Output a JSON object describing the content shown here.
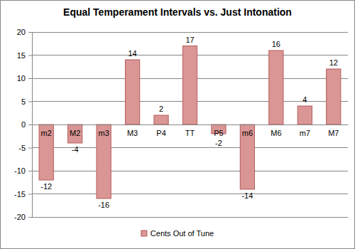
{
  "chart_data": {
    "type": "bar",
    "title": "Equal Temperament Intervals vs. Just Intonation",
    "categories": [
      "m2",
      "M2",
      "m3",
      "M3",
      "P4",
      "TT",
      "P5",
      "m6",
      "M6",
      "m7",
      "M7"
    ],
    "series": [
      {
        "name": "Cents Out of Tune",
        "color": "#d99694",
        "values": [
          -12,
          -4,
          -16,
          14,
          2,
          17,
          -2,
          -14,
          16,
          4,
          12
        ]
      }
    ],
    "ylim": [
      -20,
      20
    ],
    "yticks": [
      -20,
      -15,
      -10,
      -5,
      0,
      5,
      10,
      15,
      20
    ],
    "grid": true,
    "legend": "bottom",
    "data_labels": true
  }
}
